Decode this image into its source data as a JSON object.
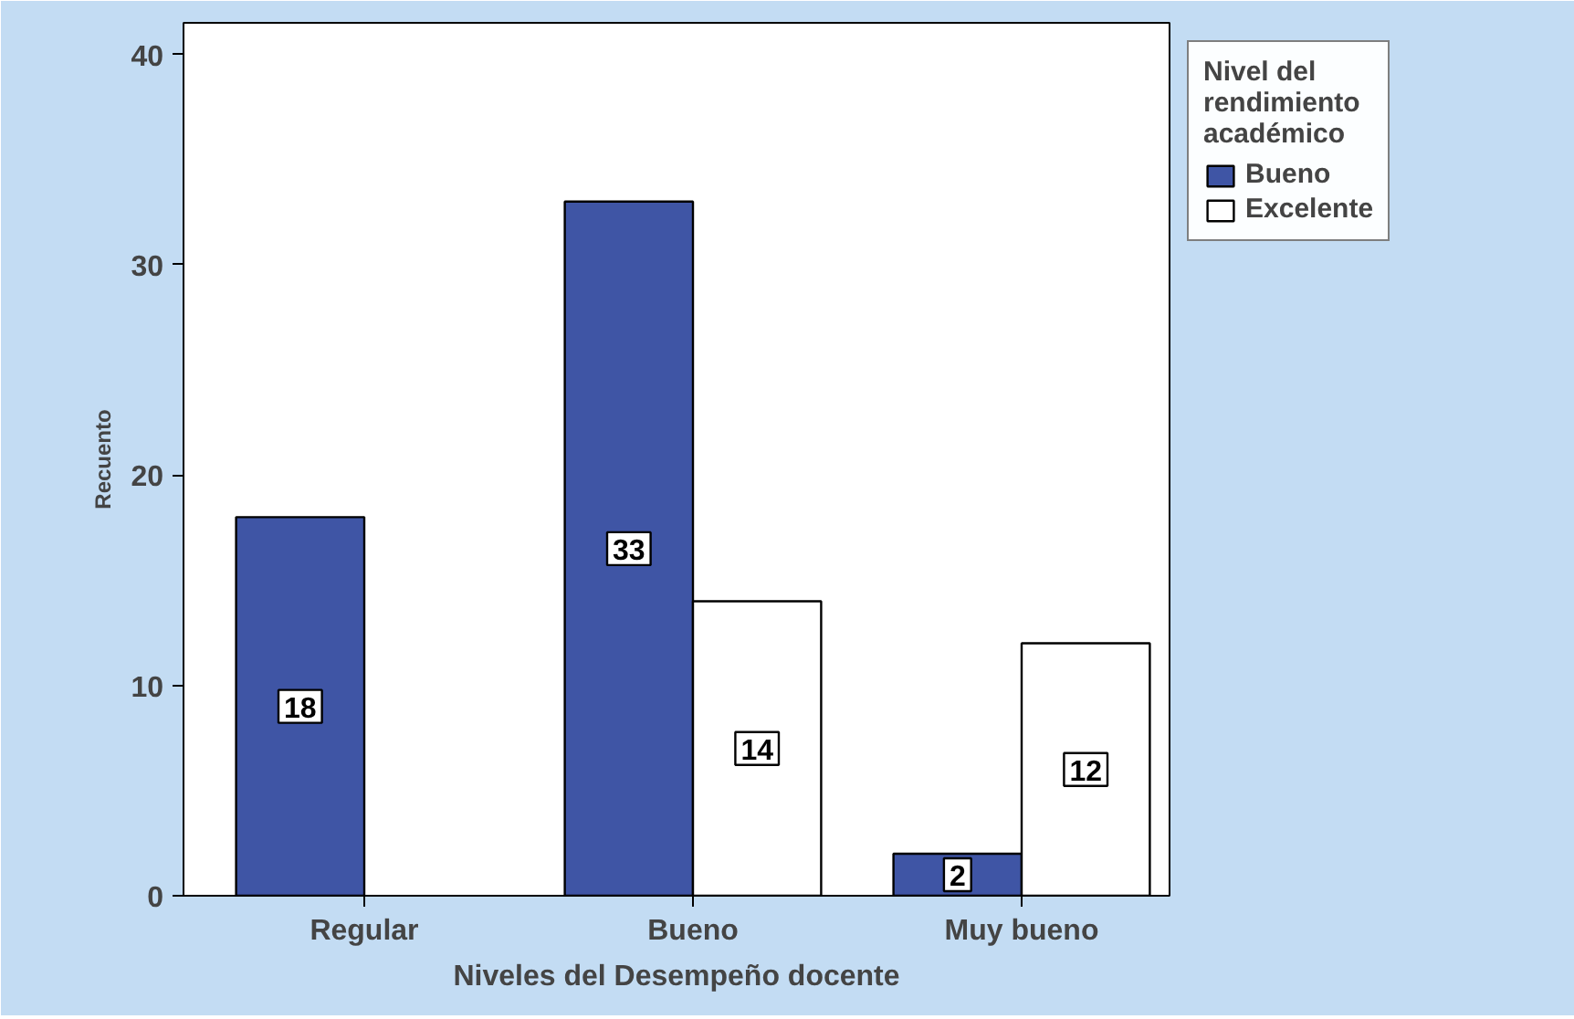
{
  "chart_data": {
    "type": "bar",
    "xlabel": "Niveles del Desempeño docente",
    "ylabel": "Recuento",
    "categories": [
      "Regular",
      "Bueno",
      "Muy bueno"
    ],
    "series": [
      {
        "name": "Bueno",
        "color": "#3f55a5",
        "values": [
          18,
          33,
          2
        ]
      },
      {
        "name": "Excelente",
        "color": "#ffffff",
        "values": [
          null,
          14,
          12
        ]
      }
    ],
    "ylim": [
      0,
      41.5
    ],
    "yticks": [
      0,
      10,
      20,
      30,
      40
    ],
    "grid": false,
    "legend": "right",
    "legend_title": "Nivel del rendimiento académico",
    "data_labels": true
  }
}
